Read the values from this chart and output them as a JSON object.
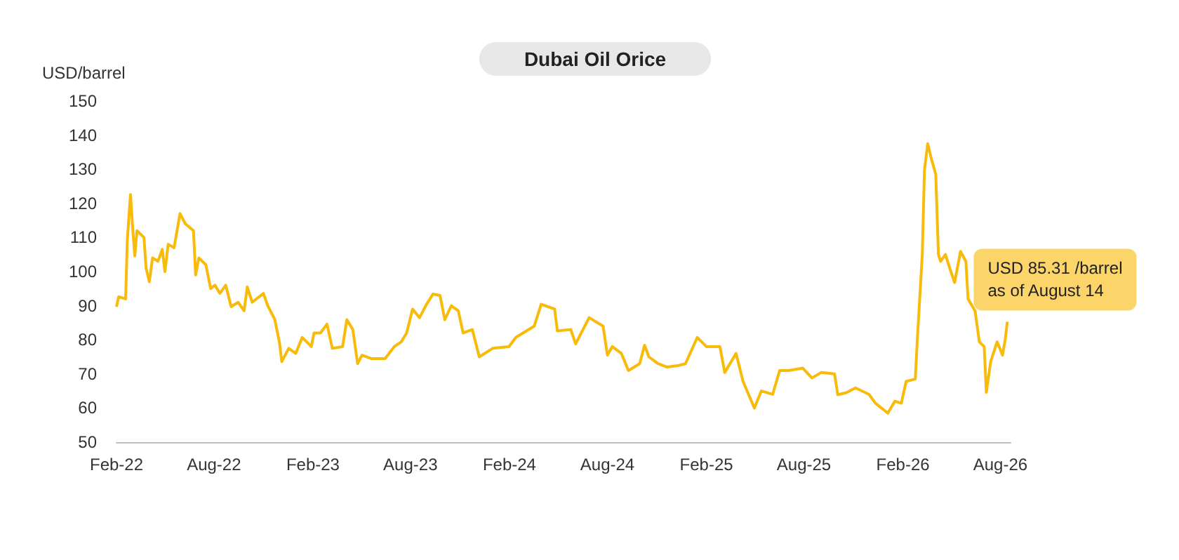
{
  "chart_data": {
    "type": "line",
    "title": "Dubai Oil Orice",
    "ylabel": "USD/barrel",
    "x": [
      "2022-02-01",
      "2022-02-05",
      "2022-02-18",
      "2022-02-21",
      "2022-02-27",
      "2022-03-03",
      "2022-03-07",
      "2022-03-11",
      "2022-03-24",
      "2022-03-28",
      "2022-04-03",
      "2022-04-09",
      "2022-04-19",
      "2022-04-27",
      "2022-05-02",
      "2022-05-08",
      "2022-05-19",
      "2022-05-30",
      "2022-06-09",
      "2022-06-24",
      "2022-06-28",
      "2022-07-04",
      "2022-07-17",
      "2022-07-26",
      "2022-08-03",
      "2022-08-12",
      "2022-08-23",
      "2022-09-02",
      "2022-09-15",
      "2022-09-26",
      "2022-10-02",
      "2022-10-11",
      "2022-11-01",
      "2022-11-09",
      "2022-11-22",
      "2022-12-01",
      "2022-12-05",
      "2022-12-18",
      "2022-12-31",
      "2023-01-12",
      "2023-01-29",
      "2023-02-03",
      "2023-02-15",
      "2023-02-27",
      "2023-03-09",
      "2023-03-28",
      "2023-04-05",
      "2023-04-16",
      "2023-04-25",
      "2023-05-03",
      "2023-05-20",
      "2023-06-15",
      "2023-07-02",
      "2023-07-15",
      "2023-07-25",
      "2023-08-05",
      "2023-08-18",
      "2023-08-31",
      "2023-09-12",
      "2023-09-25",
      "2023-10-04",
      "2023-10-16",
      "2023-10-29",
      "2023-11-07",
      "2023-11-24",
      "2023-12-07",
      "2024-01-01",
      "2024-01-31",
      "2024-02-13",
      "2024-03-18",
      "2024-03-31",
      "2024-04-25",
      "2024-04-30",
      "2024-05-25",
      "2024-06-03",
      "2024-06-28",
      "2024-07-24",
      "2024-08-01",
      "2024-08-10",
      "2024-08-27",
      "2024-09-09",
      "2024-09-30",
      "2024-10-09",
      "2024-10-17",
      "2024-11-03",
      "2024-11-20",
      "2024-12-12",
      "2024-12-24",
      "2025-01-15",
      "2025-02-01",
      "2025-02-26",
      "2025-03-07",
      "2025-03-28",
      "2025-04-10",
      "2025-05-01",
      "2025-05-14",
      "2025-06-04",
      "2025-06-17",
      "2025-07-04",
      "2025-07-30",
      "2025-08-16",
      "2025-09-02",
      "2025-09-27",
      "2025-10-03",
      "2025-10-19",
      "2025-11-05",
      "2025-11-30",
      "2025-12-12",
      "2026-01-04",
      "2026-01-17",
      "2026-01-29",
      "2026-02-07",
      "2026-02-24",
      "2026-02-28",
      "2026-03-09",
      "2026-03-13",
      "2026-03-19",
      "2026-03-26",
      "2026-04-03",
      "2026-04-08",
      "2026-04-12",
      "2026-04-21",
      "2026-04-29",
      "2026-05-08",
      "2026-05-19",
      "2026-05-29",
      "2026-06-02",
      "2026-06-15",
      "2026-06-23",
      "2026-07-02",
      "2026-07-06",
      "2026-07-14",
      "2026-07-26",
      "2026-08-05",
      "2026-08-10",
      "2026-08-14"
    ],
    "series": [
      {
        "color": "#f8bb0a",
        "values": [
          89.7,
          92.6,
          92,
          109,
          122.6,
          113,
          104.6,
          112,
          110,
          101,
          97,
          104,
          103,
          106.5,
          100,
          108,
          107,
          117,
          114,
          112,
          99,
          104,
          102,
          95,
          96,
          93.6,
          96,
          89.7,
          91,
          88.5,
          95.5,
          91,
          93.6,
          90,
          86,
          79,
          73.6,
          77.5,
          76,
          80.7,
          78,
          82,
          82,
          84.6,
          77.5,
          78,
          85.9,
          83,
          73,
          75.5,
          74.5,
          74.5,
          78,
          79.4,
          82,
          89,
          86.5,
          90.4,
          93.4,
          93,
          85.9,
          90,
          88.5,
          82,
          83,
          75,
          77.5,
          78,
          80.7,
          84,
          90.4,
          89,
          82.6,
          83,
          78.8,
          86.5,
          84,
          75.5,
          78,
          76,
          71,
          73,
          78.4,
          75,
          73,
          72,
          72.5,
          73,
          80.7,
          78,
          78,
          70.4,
          76,
          67.8,
          60,
          65,
          64,
          71,
          71,
          71.7,
          68.8,
          70.4,
          70,
          63.9,
          64.5,
          65.9,
          64,
          61.4,
          58.5,
          62,
          61.4,
          67.8,
          68.5,
          80.7,
          105,
          129.7,
          137.5,
          133,
          128.5,
          105,
          103,
          105,
          101,
          96.8,
          105.9,
          103,
          92,
          88.5,
          79.4,
          78,
          64.6,
          73.6,
          79.4,
          75.5,
          80,
          85.3
        ]
      }
    ],
    "xlim": [
      "2022-02-01",
      "2026-08-20"
    ],
    "xticks": [
      {
        "value": "2022-02-01",
        "label": "Feb-22"
      },
      {
        "value": "2022-08-01",
        "label": "Aug-22"
      },
      {
        "value": "2023-02-01",
        "label": "Feb-23"
      },
      {
        "value": "2023-08-01",
        "label": "Aug-23"
      },
      {
        "value": "2024-02-01",
        "label": "Feb-24"
      },
      {
        "value": "2024-08-01",
        "label": "Aug-24"
      },
      {
        "value": "2025-02-01",
        "label": "Feb-25"
      },
      {
        "value": "2025-08-01",
        "label": "Aug-25"
      },
      {
        "value": "2026-02-01",
        "label": "Feb-26"
      },
      {
        "value": "2026-08-01",
        "label": "Aug-26"
      }
    ],
    "ylim": [
      50,
      150
    ],
    "yticks": [
      50,
      60,
      70,
      80,
      90,
      100,
      110,
      120,
      130,
      140,
      150
    ],
    "grid": false,
    "marker": "none",
    "line_style": "solid",
    "annotations": [
      {
        "text": "USD 85.31 /barrel\nas of August 14",
        "x": "2026-08-14",
        "y": 85.3
      }
    ]
  }
}
